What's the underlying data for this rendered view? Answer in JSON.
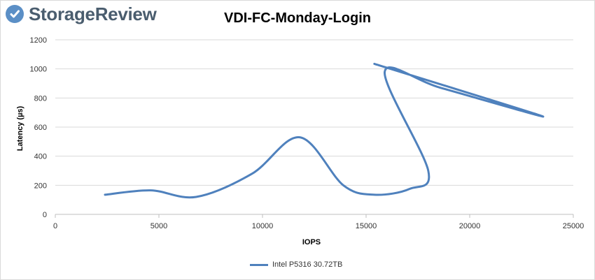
{
  "brand": {
    "logo_text": "StorageReview",
    "logo_color": "#4a5d6e",
    "mark_color": "#5b8fc6",
    "mark_icon": "storage-review-logo-mark"
  },
  "chart_data": {
    "type": "line",
    "title": "VDI-FC-Monday-Login",
    "xlabel": "IOPS",
    "ylabel": "Latency (µs)",
    "xlim": [
      0,
      25000
    ],
    "ylim": [
      0,
      1200
    ],
    "xticks": [
      0,
      5000,
      10000,
      15000,
      20000,
      25000
    ],
    "yticks": [
      0,
      200,
      400,
      600,
      800,
      1000,
      1200
    ],
    "grid": "horizontal",
    "legend_position": "bottom",
    "series": [
      {
        "name": "Intel P5316 30.72TB",
        "color": "#4f81bd",
        "x": [
          2400,
          4600,
          6800,
          9500,
          11800,
          13900,
          15400,
          17100,
          18000,
          15900,
          18600,
          23500,
          15400
        ],
        "y": [
          135,
          165,
          120,
          280,
          530,
          200,
          135,
          175,
          300,
          980,
          870,
          675,
          1035
        ]
      }
    ]
  }
}
